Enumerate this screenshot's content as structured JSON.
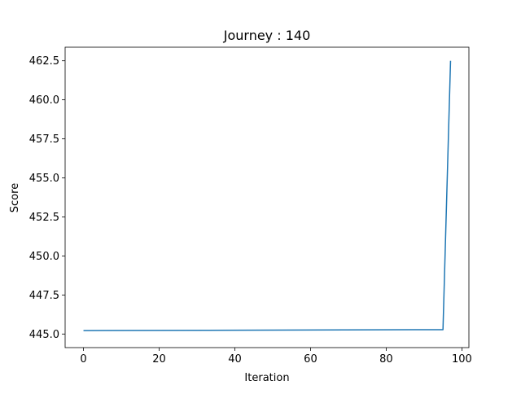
{
  "chart_data": {
    "type": "line",
    "title": "Journey : 140",
    "xlabel": "Iteration",
    "ylabel": "Score",
    "xlim": [
      -4.85,
      101.85
    ],
    "ylim": [
      444.13,
      463.37
    ],
    "x_ticks": [
      0,
      20,
      40,
      60,
      80,
      100
    ],
    "y_ticks": [
      445.0,
      447.5,
      450.0,
      452.5,
      455.0,
      457.5,
      460.0,
      462.5
    ],
    "x_tick_labels": [
      "0",
      "20",
      "40",
      "60",
      "80",
      "100"
    ],
    "y_tick_labels": [
      "445.0",
      "447.5",
      "450.0",
      "452.5",
      "455.0",
      "457.5",
      "460.0",
      "462.5"
    ],
    "grid": false,
    "series": [
      {
        "color": "#1f77b4",
        "x": [
          0,
          95,
          97
        ],
        "y": [
          445.22,
          445.28,
          462.5
        ]
      }
    ]
  }
}
